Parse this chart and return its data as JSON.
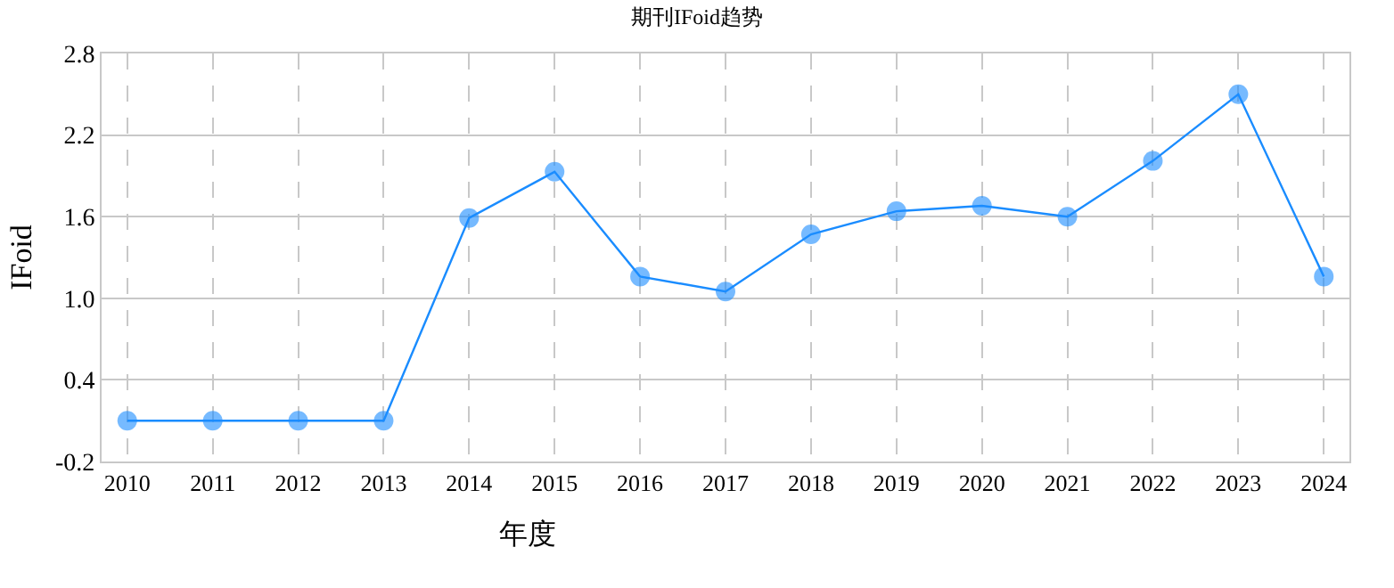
{
  "chart_data": {
    "type": "line",
    "title": "期刊IFoid趋势",
    "xlabel": "年度",
    "ylabel": "IFoid",
    "categories": [
      "2010",
      "2011",
      "2012",
      "2013",
      "2014",
      "2015",
      "2016",
      "2017",
      "2018",
      "2019",
      "2020",
      "2021",
      "2022",
      "2023",
      "2024"
    ],
    "series": [
      {
        "color": "#1a8cff",
        "values": [
          0.1,
          0.1,
          0.1,
          0.1,
          1.59,
          1.93,
          1.16,
          1.05,
          1.47,
          1.64,
          1.68,
          1.6,
          2.01,
          2.5,
          1.16
        ]
      }
    ],
    "ylim": [
      -0.2,
      2.8
    ],
    "yticks": [
      -0.2,
      0.4,
      {
        "value": 1,
        "label": "1.0"
      },
      1.6,
      2.2,
      2.8
    ],
    "grid": true,
    "legend": false,
    "marker": "circle",
    "line_style": "solid"
  }
}
